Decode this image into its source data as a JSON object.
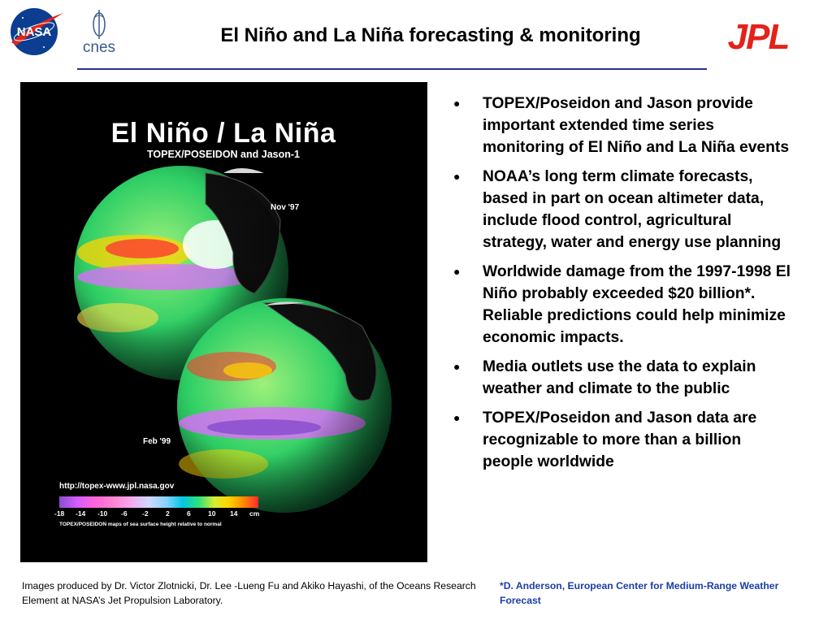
{
  "header": {
    "title": "El Niño and La Niña forecasting & monitoring",
    "nasa_logo_text": "NASA",
    "cnes_logo_text": "cnes",
    "jpl_logo_text": "JPL"
  },
  "visual": {
    "title": "El Niño / La Niña",
    "subtitle": "TOPEX/POSEIDON and Jason-1",
    "date_top": "Nov '97",
    "date_bottom": "Feb '99",
    "url": "http://topex-www.jpl.nasa.gov",
    "scale_ticks": [
      "-18",
      "-14",
      "-10",
      "-6",
      "-2",
      "2",
      "6",
      "10",
      "14",
      "cm"
    ],
    "scale_caption": "TOPEX/POSEIDON maps of sea surface height relative to normal"
  },
  "bullets": [
    "TOPEX/Poseidon and Jason provide important extended time series monitoring of El Niño and La Niña events",
    "NOAA’s long term climate forecasts, based in part on ocean altimeter data, include flood control, agricultural strategy, water and energy use planning",
    "Worldwide damage from the 1997-1998 El Niño probably exceeded $20 billion*. Reliable predictions could help minimize economic impacts.",
    "Media outlets use the data to explain weather and climate to the public",
    "TOPEX/Poseidon and Jason data are recognizable to more than a billion people worldwide"
  ],
  "bullet_marker": "●",
  "footer": {
    "credit": "Images produced by Dr. Victor Zlotnicki, Dr. Lee -Lueng Fu and Akiko Hayashi, of the Oceans Research Element at  NASA’s Jet Propulsion Laboratory.",
    "footnote": "*D. Anderson, European Center for Medium-Range Weather Forecast"
  },
  "colors": {
    "title_rule": "#2a2f8f",
    "footnote_text": "#1b3ea6",
    "jpl_red": "#e3231b",
    "nasa_blue": "#0b3d91"
  }
}
